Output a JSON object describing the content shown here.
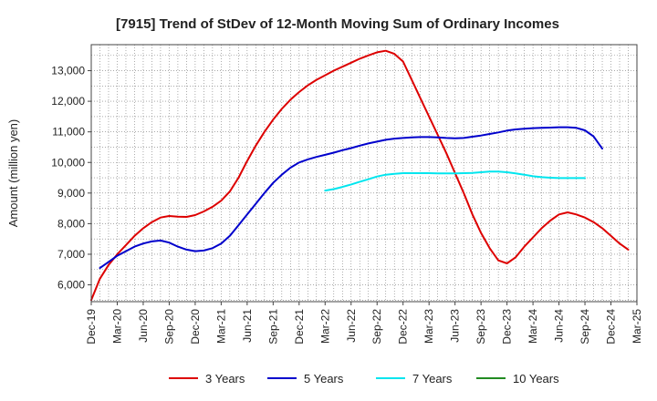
{
  "chart_data": {
    "type": "line",
    "title": "[7915]  Trend of StDev of 12-Month Moving Sum of Ordinary Incomes",
    "ylabel": "Amount (million yen)",
    "xlabel": "",
    "x_ticks": [
      "Dec-19",
      "Mar-20",
      "Jun-20",
      "Sep-20",
      "Dec-20",
      "Mar-21",
      "Jun-21",
      "Sep-21",
      "Dec-21",
      "Mar-22",
      "Jun-22",
      "Sep-22",
      "Dec-22",
      "Mar-23",
      "Jun-23",
      "Sep-23",
      "Dec-23",
      "Mar-24",
      "Jun-24",
      "Sep-24",
      "Dec-24",
      "Mar-25"
    ],
    "y_ticks": [
      6000,
      7000,
      8000,
      9000,
      10000,
      11000,
      12000,
      13000
    ],
    "y_tick_labels": [
      "6,000",
      "7,000",
      "8,000",
      "9,000",
      "10,000",
      "11,000",
      "12,000",
      "13,000"
    ],
    "ylim": [
      5450,
      13850
    ],
    "grid": true,
    "legend_position": "bottom",
    "series": [
      {
        "name": "3 Years",
        "color": "#dd0000",
        "start_index": 0,
        "values": [
          5500,
          6200,
          6650,
          7000,
          7300,
          7600,
          7850,
          8050,
          8200,
          8250,
          8230,
          8220,
          8280,
          8400,
          8550,
          8750,
          9050,
          9500,
          10050,
          10550,
          11000,
          11400,
          11750,
          12050,
          12300,
          12520,
          12700,
          12850,
          13000,
          13130,
          13260,
          13390,
          13500,
          13600,
          13650,
          13550,
          13300,
          12700,
          12100,
          11500,
          10900,
          10300,
          9650,
          9000,
          8300,
          7700,
          7200,
          6800,
          6700,
          6900,
          7250,
          7550,
          7850,
          8100,
          8300,
          8370,
          8300,
          8200,
          8050,
          7850,
          7600,
          7350,
          7150
        ]
      },
      {
        "name": "5 Years",
        "color": "#0000cc",
        "start_index": 1,
        "values": [
          6550,
          6750,
          6950,
          7100,
          7250,
          7350,
          7420,
          7450,
          7380,
          7250,
          7150,
          7100,
          7120,
          7200,
          7350,
          7600,
          7950,
          8300,
          8650,
          9000,
          9330,
          9600,
          9830,
          10000,
          10100,
          10180,
          10250,
          10320,
          10400,
          10470,
          10550,
          10620,
          10680,
          10740,
          10780,
          10800,
          10820,
          10830,
          10830,
          10820,
          10800,
          10790,
          10800,
          10840,
          10880,
          10930,
          10980,
          11040,
          11080,
          11100,
          11120,
          11130,
          11140,
          11150,
          11150,
          11130,
          11050,
          10850,
          10450
        ]
      },
      {
        "name": "7 Years",
        "color": "#00e5ee",
        "start_index": 27,
        "values": [
          9080,
          9130,
          9200,
          9280,
          9370,
          9450,
          9540,
          9600,
          9630,
          9650,
          9650,
          9650,
          9650,
          9640,
          9640,
          9640,
          9650,
          9660,
          9680,
          9700,
          9700,
          9680,
          9640,
          9600,
          9550,
          9520,
          9500,
          9490,
          9490,
          9490,
          9490
        ]
      },
      {
        "name": "10 Years",
        "color": "#228b22",
        "start_index": 0,
        "values": []
      }
    ]
  }
}
